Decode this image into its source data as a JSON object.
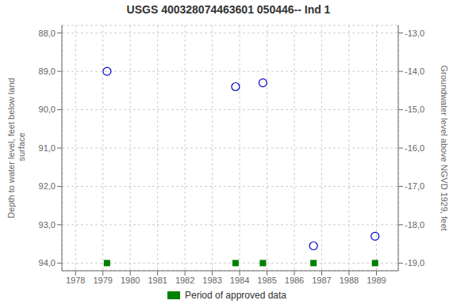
{
  "chart_data": {
    "type": "scatter",
    "title": "USGS 400328074463601 050446-- Ind 1",
    "ylabel": "Depth to water level, feet below land\n surface",
    "y2label": "Groundwater level above NGVD 1929, feet",
    "x": [
      1979.15,
      1983.85,
      1984.85,
      1986.7,
      1988.95
    ],
    "series": [
      {
        "type": "scatter",
        "marker": "circle",
        "color": "#0000cc",
        "values": [
          89.0,
          89.4,
          89.3,
          93.55,
          93.3
        ]
      },
      {
        "name": "Period of approved data",
        "type": "scatter",
        "marker": "square",
        "color": "#008000",
        "values": [
          94.0,
          94.0,
          94.0,
          94.0,
          94.0
        ]
      }
    ],
    "xlim": [
      1977.5,
      1989.8
    ],
    "ylim": [
      94.2,
      87.8
    ],
    "y2lim": [
      -19.2,
      -12.8
    ],
    "xticks": [
      1978,
      1979,
      1980,
      1981,
      1982,
      1983,
      1984,
      1985,
      1986,
      1987,
      1988,
      1989
    ],
    "yticks": [
      {
        "value": 88.0,
        "label": "88,0"
      },
      {
        "value": 89.0,
        "label": "89,0"
      },
      {
        "value": 90.0,
        "label": "90,0"
      },
      {
        "value": 91.0,
        "label": "91,0"
      },
      {
        "value": 92.0,
        "label": "92,0"
      },
      {
        "value": 93.0,
        "label": "93,0"
      },
      {
        "value": 94.0,
        "label": "94,0"
      }
    ],
    "y2ticks": [
      {
        "value": -13.0,
        "label": "-13,0"
      },
      {
        "value": -14.0,
        "label": "-14,0"
      },
      {
        "value": -15.0,
        "label": "-15,0"
      },
      {
        "value": -16.0,
        "label": "-16,0"
      },
      {
        "value": -17.0,
        "label": "-17,0"
      },
      {
        "value": -18.0,
        "label": "-18,0"
      },
      {
        "value": -19.0,
        "label": "-19,0"
      }
    ],
    "grid": true,
    "legend": "bottom"
  }
}
